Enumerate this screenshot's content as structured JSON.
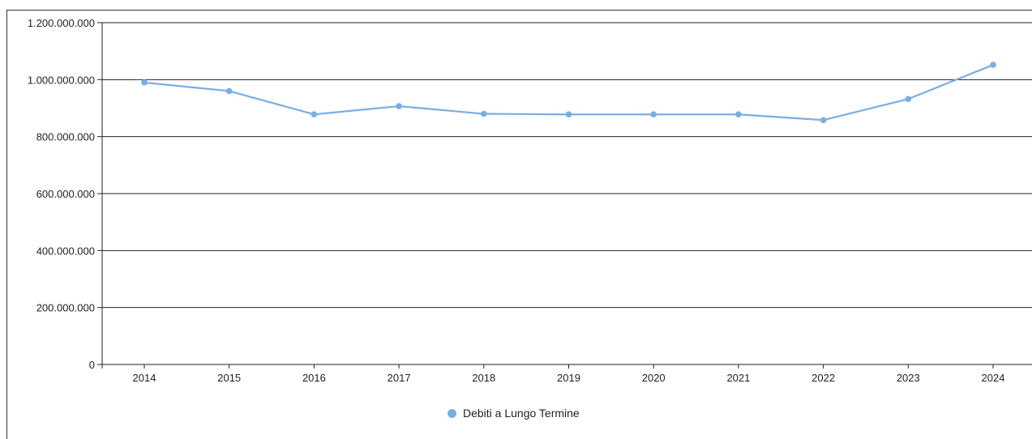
{
  "chart_data": {
    "type": "line",
    "title": "",
    "xlabel": "",
    "ylabel": "",
    "categories": [
      "2014",
      "2015",
      "2016",
      "2017",
      "2018",
      "2019",
      "2020",
      "2021",
      "2022",
      "2023",
      "2024"
    ],
    "series": [
      {
        "name": "Debiti a Lungo Termine",
        "color": "#7aaee3",
        "values": [
          990000000,
          960000000,
          878000000,
          907000000,
          880000000,
          878000000,
          878000000,
          878000000,
          858000000,
          932000000,
          1052000000
        ]
      }
    ],
    "ylim": [
      0,
      1200000000
    ],
    "yticks": [
      0,
      200000000,
      400000000,
      600000000,
      800000000,
      1000000000,
      1200000000
    ],
    "ytick_labels": [
      "0",
      "200.000.000",
      "400.000.000",
      "600.000.000",
      "800.000.000",
      "1.000.000.000",
      "1.200.000.000"
    ],
    "grid": true,
    "legend_position": "bottom"
  }
}
